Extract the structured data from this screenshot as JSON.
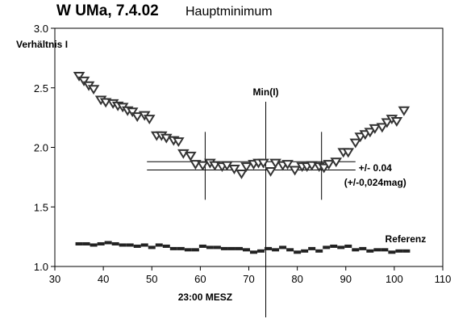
{
  "chart_data": {
    "type": "scatter",
    "title": "W UMa, 7.4.02",
    "subtitle": "Hauptminimum",
    "ylabel": "Verhältnis I",
    "xlabel": "",
    "xlim": [
      30,
      110
    ],
    "ylim": [
      1.0,
      3.0
    ],
    "x_ticks": [
      30,
      40,
      50,
      60,
      70,
      80,
      90,
      100,
      110
    ],
    "y_ticks": [
      "1.0",
      "1.5",
      "2.0",
      "2.5",
      "3.0"
    ],
    "grid": false,
    "series": [
      {
        "name": "",
        "marker": "triangle-down",
        "x": [
          35,
          36,
          37,
          38,
          39.5,
          40.5,
          42,
          43,
          44,
          45,
          46,
          47,
          48.5,
          49.5,
          51,
          52,
          53,
          54.5,
          55.5,
          56.5,
          58,
          59,
          60.5,
          62,
          63,
          64.5,
          65.5,
          67,
          68.5,
          69.5,
          71,
          72,
          73,
          74.5,
          75.5,
          77,
          78,
          79.5,
          81,
          82,
          83,
          84.5,
          85.5,
          86.5,
          88,
          89.5,
          90.5,
          92,
          93,
          94,
          95,
          96,
          97.5,
          98.5,
          99.5,
          100.5,
          102
        ],
        "y": [
          2.6,
          2.56,
          2.52,
          2.49,
          2.4,
          2.38,
          2.37,
          2.35,
          2.34,
          2.31,
          2.3,
          2.26,
          2.27,
          2.24,
          2.1,
          2.1,
          2.08,
          2.06,
          2.05,
          1.95,
          1.93,
          1.86,
          1.85,
          1.87,
          1.85,
          1.84,
          1.85,
          1.82,
          1.78,
          1.84,
          1.86,
          1.87,
          1.87,
          1.8,
          1.87,
          1.85,
          1.86,
          1.81,
          1.84,
          1.84,
          1.85,
          1.84,
          1.83,
          1.86,
          1.88,
          1.96,
          1.96,
          2.04,
          2.09,
          2.11,
          2.13,
          2.16,
          2.17,
          2.21,
          2.24,
          2.22,
          2.31
        ]
      },
      {
        "name": "Referenz",
        "marker": "bar",
        "x": [
          35,
          36.5,
          38,
          39.5,
          41,
          42.5,
          44,
          45.5,
          47,
          48.5,
          50,
          51.5,
          53,
          54.5,
          56,
          57.5,
          59,
          60.5,
          62,
          63.5,
          65,
          66.5,
          68,
          69.5,
          71,
          72.5,
          74,
          75.5,
          77,
          78.5,
          80,
          81.5,
          83,
          84.5,
          86,
          87.5,
          89,
          90.5,
          92,
          93.5,
          95,
          96.5,
          98,
          99.5,
          101,
          102.5
        ],
        "y": [
          1.19,
          1.19,
          1.18,
          1.19,
          1.2,
          1.19,
          1.18,
          1.18,
          1.17,
          1.18,
          1.16,
          1.18,
          1.17,
          1.15,
          1.15,
          1.14,
          1.14,
          1.17,
          1.16,
          1.16,
          1.15,
          1.15,
          1.15,
          1.14,
          1.12,
          1.13,
          1.15,
          1.14,
          1.16,
          1.14,
          1.12,
          1.13,
          1.15,
          1.13,
          1.16,
          1.17,
          1.16,
          1.17,
          1.14,
          1.15,
          1.13,
          1.14,
          1.14,
          1.12,
          1.13,
          1.13
        ]
      }
    ],
    "annotations": {
      "min_label": "Min(I)",
      "min_x": 73.5,
      "level_upper": 1.88,
      "level_lower": 1.81,
      "level_x_range": [
        49,
        92
      ],
      "bound_left_x": 61,
      "bound_right_x": 85,
      "bound_y_range": [
        1.56,
        2.13
      ],
      "error_text_1": "+/- 0.04",
      "error_text_2": "(+/-0,024mag)",
      "xaxis_note": "23:00 MESZ",
      "xaxis_note_x": 61,
      "reference_label": "Referenz"
    }
  }
}
